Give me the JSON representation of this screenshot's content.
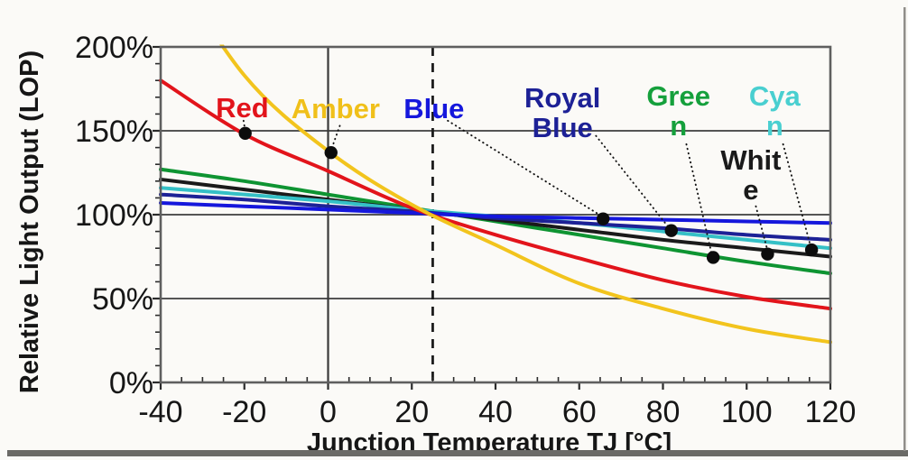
{
  "frame": {
    "page_bg": "#FFFFFF",
    "chart_bg": "#FBFAF7",
    "grid_color": "#555555",
    "box_color": "#5F5F5F",
    "tick_color": "#2B2B2B",
    "text_color": "#161616",
    "zero_line_color": "#3A3A3A",
    "dashed_line_color": "#1C1C1C",
    "leader_color": "#141414",
    "dot_color": "#0C0C0C",
    "bottom_edge_color": "#6B6A66",
    "right_edge_color": "#908E8A"
  },
  "chart_data": {
    "type": "line",
    "title": "",
    "xlabel": "Junction Temperature TJ [°C]",
    "ylabel": "Relative Light Output (LOP)",
    "xlim": [
      -40,
      120
    ],
    "ylim": [
      0,
      200
    ],
    "x_ticks": [
      -40,
      -20,
      0,
      20,
      40,
      60,
      80,
      100,
      120
    ],
    "x_tick_labels": [
      "-40",
      "-20",
      "0",
      "20",
      "40",
      "60",
      "80",
      "100",
      "120"
    ],
    "y_ticks": [
      0,
      50,
      100,
      150,
      200
    ],
    "y_tick_labels": [
      "0%",
      "50%",
      "100%",
      "150%",
      "200%"
    ],
    "x_minor_step": 5,
    "y_minor_step": 10,
    "grid": "horizontal-major",
    "legend": "inline-annotations",
    "reference_lines": [
      {
        "style": "solid-vertical",
        "x": 0
      },
      {
        "style": "dashed-vertical",
        "x": 25
      }
    ],
    "x": [
      -40,
      -20,
      0,
      20,
      40,
      60,
      80,
      100,
      120
    ],
    "series": [
      {
        "name": "Green",
        "color": "#0E9432",
        "values": [
          127,
          120,
          112,
          104,
          96,
          88,
          80,
          72,
          65
        ]
      },
      {
        "name": "White",
        "color": "#1A1A1A",
        "values": [
          121,
          115,
          109,
          103,
          97,
          91,
          85,
          80,
          75
        ]
      },
      {
        "name": "Cyan",
        "color": "#35C0C6",
        "values": [
          116,
          112,
          108,
          103,
          99,
          95,
          90,
          85,
          80
        ]
      },
      {
        "name": "Royal Blue",
        "color": "#1D2196",
        "values": [
          112,
          109,
          105,
          102,
          98,
          95,
          92,
          88,
          85
        ]
      },
      {
        "name": "Blue",
        "color": "#1517DC",
        "values": [
          107,
          105,
          103,
          101,
          99,
          98,
          97,
          96,
          95
        ]
      },
      {
        "name": "Red",
        "color": "#E2141B",
        "values": [
          180,
          148,
          126,
          104,
          88,
          74,
          61,
          51,
          44
        ]
      },
      {
        "name": "Amber",
        "color": "#F2C41D",
        "values": [
          258,
          183,
          138,
          106,
          82,
          59,
          44,
          32,
          24
        ]
      }
    ],
    "annotations": [
      {
        "lines": [
          "Red"
        ],
        "color": "#E2141B",
        "label_xy": [
          -20.5,
          164
        ],
        "leader": [
          [
            -20.2,
            156
          ],
          [
            -19.8,
            150
          ]
        ],
        "dot": [
          -19.8,
          148.5
        ]
      },
      {
        "lines": [
          "Amber"
        ],
        "color": "#F0C01A",
        "label_xy": [
          1.8,
          163.5
        ],
        "leader": [
          [
            2.8,
            153
          ],
          [
            0.8,
            139
          ]
        ],
        "dot": [
          0.7,
          137
        ]
      },
      {
        "lines": [
          "Blue"
        ],
        "color": "#1517DC",
        "label_xy": [
          25.3,
          163.5
        ],
        "leader": [
          [
            28.6,
            156
          ],
          [
            64.8,
            100
          ]
        ],
        "dot": [
          65.7,
          97.5
        ]
      },
      {
        "lines": [
          "Royal",
          "Blue"
        ],
        "color": "#1D2196",
        "label_xy": [
          56,
          161
        ],
        "leader": [
          [
            64,
            147
          ],
          [
            81.5,
            92
          ]
        ],
        "dot": [
          82,
          90.5
        ]
      },
      {
        "lines": [
          "Gree",
          "n"
        ],
        "color": "#15A03C",
        "label_xy": [
          83.7,
          162
        ],
        "leader": [
          [
            85.6,
            142
          ],
          [
            91.7,
            76
          ]
        ],
        "dot": [
          92,
          74.5
        ]
      },
      {
        "lines": [
          "Cya",
          "n"
        ],
        "color": "#49CFD0",
        "label_xy": [
          106.7,
          162
        ],
        "leader": [
          [
            108.7,
            142
          ],
          [
            115.3,
            81
          ]
        ],
        "dot": [
          115.5,
          79
        ]
      },
      {
        "lines": [
          "Whit",
          "e"
        ],
        "color": "#1A1A1A",
        "label_xy": [
          101,
          124
        ],
        "leader": [
          [
            102.2,
            105
          ],
          [
            105,
            78.5
          ]
        ],
        "dot": [
          105,
          76.5
        ]
      }
    ]
  }
}
